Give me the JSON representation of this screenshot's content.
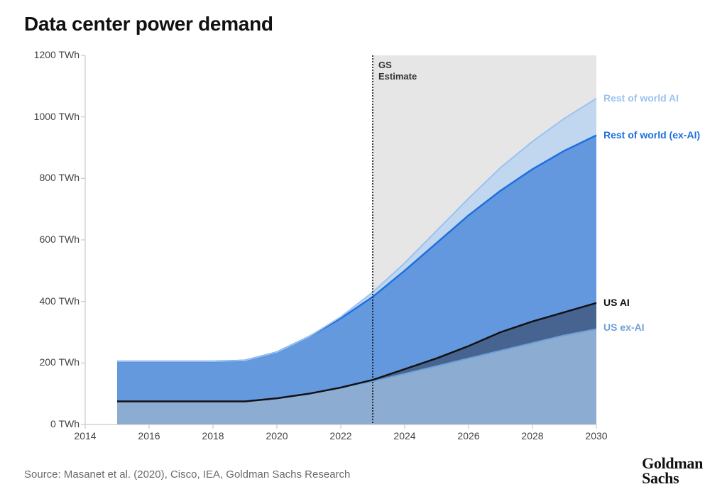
{
  "title": "Data center power demand",
  "source": "Source: Masanet et al. (2020), Cisco, IEA, Goldman Sachs Research",
  "brand_line1": "Goldman",
  "brand_line2": "Sachs",
  "chart": {
    "type": "area",
    "xlim": [
      2014,
      2030
    ],
    "ylim": [
      0,
      1200
    ],
    "y_unit": "TWh",
    "ytick_step": 200,
    "xtick_step": 2,
    "yticks": [
      0,
      200,
      400,
      600,
      800,
      1000,
      1200
    ],
    "xticks": [
      2014,
      2016,
      2018,
      2020,
      2022,
      2024,
      2026,
      2028,
      2030
    ],
    "background_color": "#ffffff",
    "axis_color": "#bfbfbf",
    "tick_fontsize": 14,
    "tick_color": "#444444",
    "title_fontsize": 28,
    "title_weight": 600,
    "estimate": {
      "start_year": 2023,
      "label_line1": "GS",
      "label_line2": "Estimate",
      "band_color": "#e6e6e6",
      "divider_color": "#111111",
      "divider_dash": "2 2",
      "divider_width": 1.6
    },
    "data_years": [
      2015,
      2016,
      2017,
      2018,
      2019,
      2020,
      2021,
      2022,
      2023,
      2024,
      2025,
      2026,
      2027,
      2028,
      2029,
      2030
    ],
    "series": [
      {
        "key": "us_ex_ai",
        "label": "US ex-AI",
        "label_y": 315,
        "label_color": "#6f9fd8",
        "fill": "#99b9dd",
        "fill_opacity": 0.85,
        "line": "#6f9fd8",
        "line_width": 2,
        "values": [
          75,
          75,
          75,
          75,
          75,
          85,
          100,
          120,
          140,
          165,
          190,
          215,
          240,
          265,
          290,
          310
        ]
      },
      {
        "key": "us_ai",
        "label": "US AI",
        "label_y": 395,
        "label_color": "#111111",
        "fill": "#2e3b4e",
        "fill_opacity": 0.55,
        "line": "#111111",
        "line_width": 2.5,
        "values": [
          75,
          75,
          75,
          75,
          75,
          85,
          100,
          120,
          145,
          180,
          215,
          255,
          300,
          335,
          365,
          395
        ]
      },
      {
        "key": "row_ex_ai",
        "label": "Rest of world (ex-AI)",
        "label_y": 940,
        "label_color": "#1f6fe0",
        "fill": "#4a87d8",
        "fill_opacity": 0.78,
        "line": "#1f6fe0",
        "line_width": 2.5,
        "values": [
          205,
          205,
          205,
          205,
          208,
          235,
          285,
          345,
          415,
          500,
          590,
          680,
          760,
          830,
          890,
          940
        ]
      },
      {
        "key": "row_ai",
        "label": "Rest of world AI",
        "label_y": 1060,
        "label_color": "#9cc2ef",
        "fill": "#b9d3f0",
        "fill_opacity": 0.85,
        "line": "#9cc2ef",
        "line_width": 2,
        "values": [
          205,
          205,
          205,
          205,
          208,
          235,
          285,
          350,
          430,
          525,
          630,
          735,
          835,
          920,
          995,
          1060
        ]
      }
    ]
  }
}
